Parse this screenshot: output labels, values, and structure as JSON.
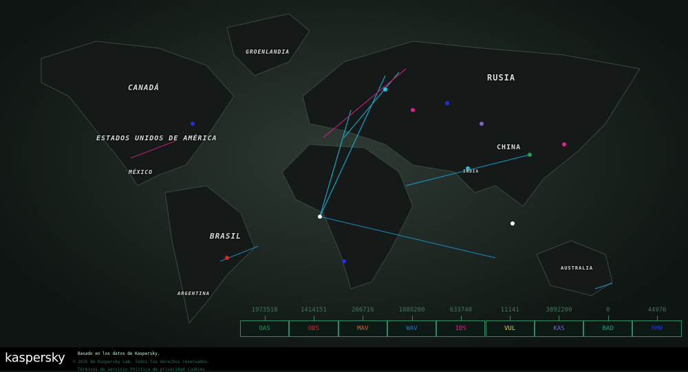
{
  "map": {
    "country_labels": [
      {
        "name": "groenlandia",
        "text": "GROENLANDIA"
      },
      {
        "name": "canada",
        "text": "CANADÁ"
      },
      {
        "name": "usa",
        "text": "ESTADOS UNIDOS DE AMÉRICA"
      },
      {
        "name": "mexico",
        "text": "MÉXICO"
      },
      {
        "name": "brasil",
        "text": "BRASIL"
      },
      {
        "name": "argentina",
        "text": "ARGENTINA"
      },
      {
        "name": "rusia",
        "text": "RUSIA"
      },
      {
        "name": "china",
        "text": "CHINA"
      },
      {
        "name": "india",
        "text": "INDIA"
      },
      {
        "name": "australia",
        "text": "AUSTRALIA"
      }
    ]
  },
  "stats": [
    {
      "label": "OAS",
      "value": "1973518",
      "color": "#1fa04a"
    },
    {
      "label": "ODS",
      "value": "1414151",
      "color": "#e0202a"
    },
    {
      "label": "MAV",
      "value": "266716",
      "color": "#e0661a"
    },
    {
      "label": "WAV",
      "value": "1888200",
      "color": "#1a7ad6"
    },
    {
      "label": "IDS",
      "value": "633740",
      "color": "#e0208a"
    },
    {
      "label": "VUL",
      "value": "11141",
      "color": "#d8d030"
    },
    {
      "label": "KAS",
      "value": "3892200",
      "color": "#8a5ad6"
    },
    {
      "label": "BAD",
      "value": "0",
      "color": "#1aa088"
    },
    {
      "label": "RMW",
      "value": "44976",
      "color": "#2030e0"
    }
  ],
  "footer": {
    "logo": "kaspersky",
    "based_on": "Basado en los datos de Kaspersky.",
    "copyright": "© 2025 AO Kaspersky Lab. Todos los derechos reservados.",
    "links": [
      "Términos de servicio",
      "Política de privacidad",
      "Cookies"
    ]
  }
}
